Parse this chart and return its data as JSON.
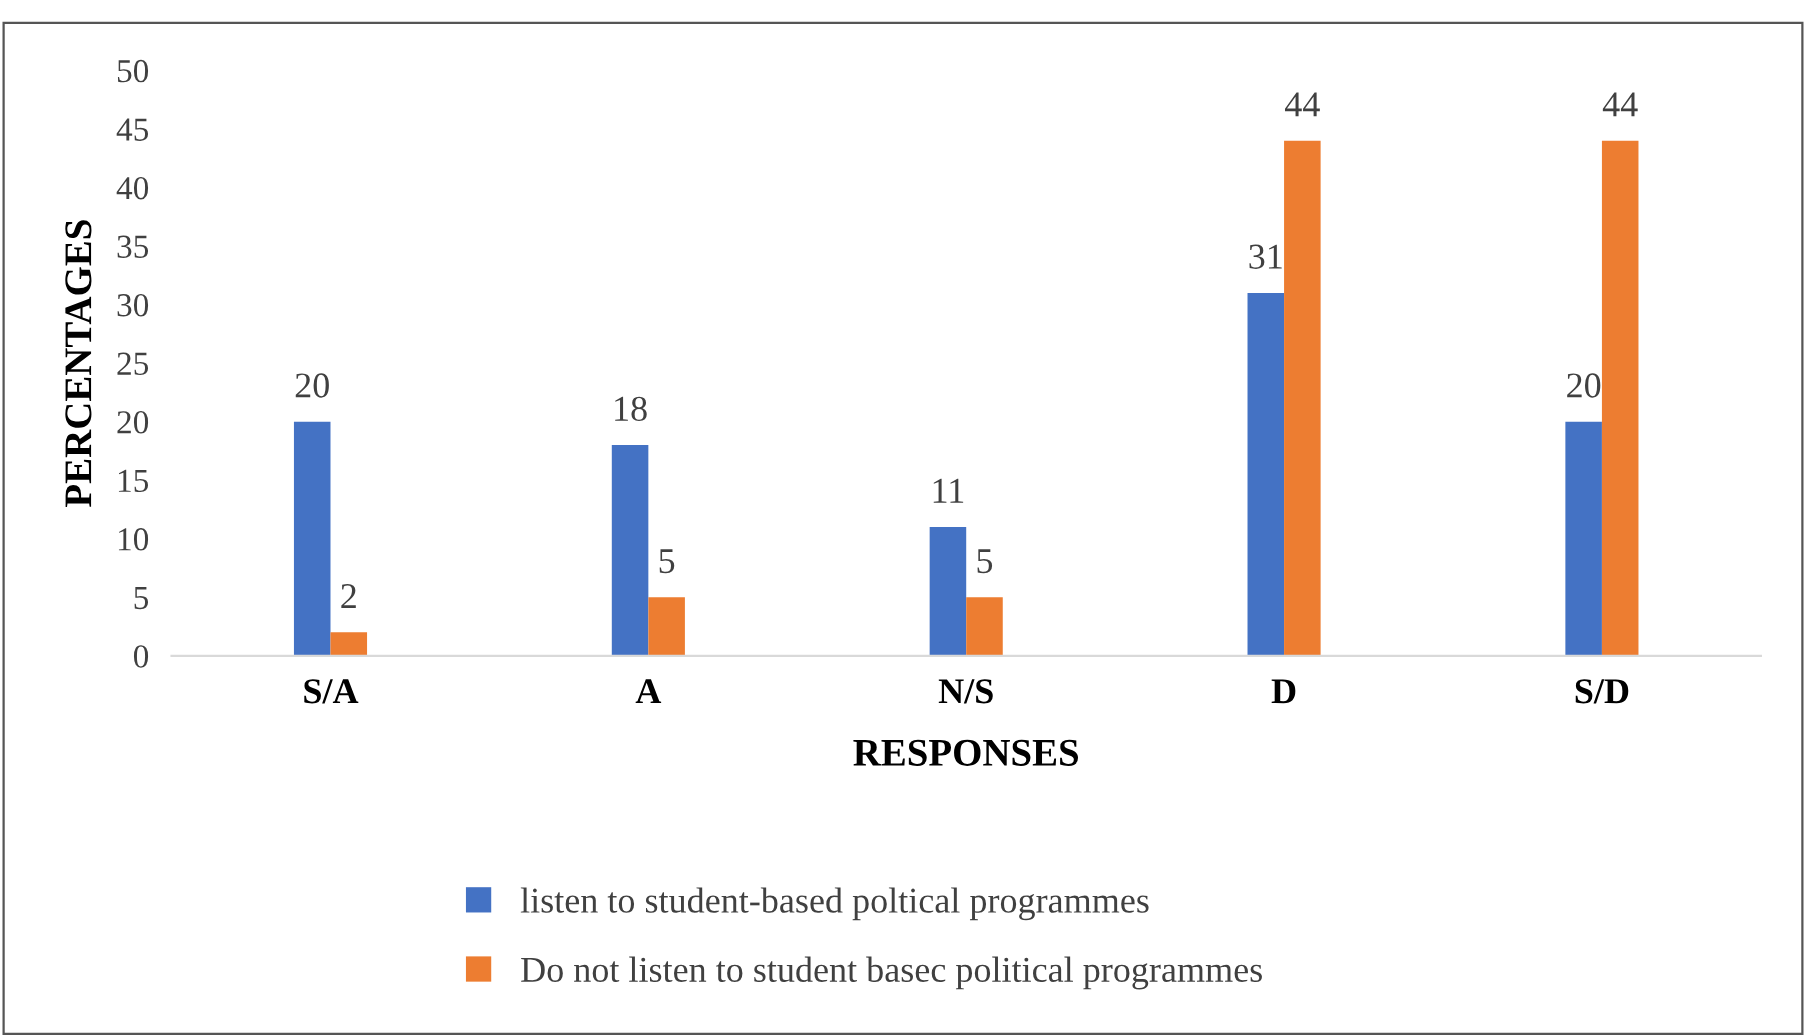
{
  "chart_data": {
    "type": "bar",
    "xlabel": "RESPONSES",
    "ylabel": "PERCENTAGES",
    "categories": [
      "S/A",
      "A",
      "N/S",
      "D",
      "S/D"
    ],
    "series": [
      {
        "name": "listen to student-based poltical programmes",
        "color": "#4472c4",
        "values": [
          20,
          18,
          11,
          31,
          20
        ]
      },
      {
        "name": "Do not listen to student basec political programmes",
        "color": "#ed7d31",
        "values": [
          2,
          5,
          5,
          44,
          44
        ]
      }
    ],
    "ylim": [
      0,
      50
    ],
    "yticks": [
      0,
      5,
      10,
      15,
      20,
      25,
      30,
      35,
      40,
      45,
      50
    ],
    "grid": false,
    "legend": "bottom",
    "data_labels": true
  }
}
